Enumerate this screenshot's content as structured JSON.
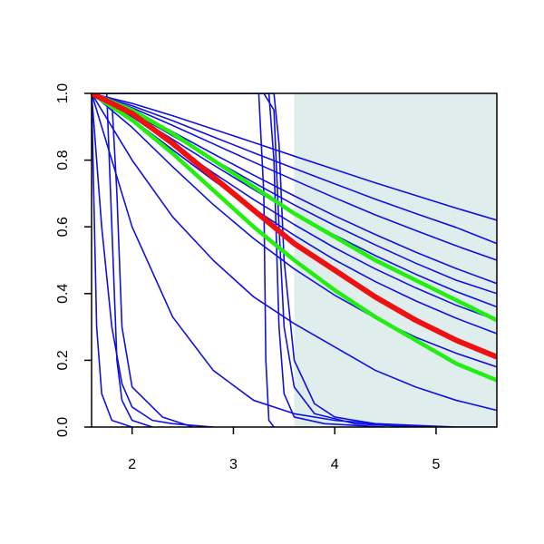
{
  "chart_data": {
    "type": "line",
    "xlim": [
      1.6,
      5.6
    ],
    "ylim": [
      0,
      1
    ],
    "xticks": [
      2,
      3,
      4,
      5
    ],
    "yticks": [
      {
        "value": 0,
        "label": "0.0"
      },
      0.2,
      0.4,
      0.6,
      0.8,
      {
        "value": 1,
        "label": "1.0"
      }
    ],
    "shade": {
      "x": [
        3.6,
        5.6
      ],
      "color": "#e0eded"
    },
    "series": [
      {
        "color": "#1010e0",
        "x": [
          1.6,
          2.0,
          2.4,
          2.8,
          3.2,
          3.6,
          4.0,
          4.4,
          4.8,
          5.2,
          5.6
        ],
        "values": [
          1,
          0.97,
          0.933,
          0.893,
          0.853,
          0.812,
          0.772,
          0.732,
          0.694,
          0.656,
          0.62
        ]
      },
      {
        "color": "#1010e0",
        "x": [
          1.6,
          2.0,
          2.4,
          2.8,
          3.2,
          3.6,
          4.0,
          4.4,
          4.8,
          5.2,
          5.6
        ],
        "values": [
          1,
          0.963,
          0.918,
          0.87,
          0.822,
          0.775,
          0.729,
          0.683,
          0.64,
          0.598,
          0.55
        ]
      },
      {
        "color": "#1010e0",
        "x": [
          1.6,
          2.0,
          2.4,
          2.8,
          3.2,
          3.6,
          4.0,
          4.4,
          4.8,
          5.2,
          5.6
        ],
        "values": [
          1,
          0.957,
          0.904,
          0.849,
          0.794,
          0.74,
          0.687,
          0.636,
          0.589,
          0.543,
          0.5
        ]
      },
      {
        "color": "#1010e0",
        "x": [
          1.6,
          2.0,
          2.4,
          2.8,
          3.2,
          3.6,
          4.0,
          4.4,
          4.8,
          5.2,
          5.6
        ],
        "values": [
          1,
          0.948,
          0.885,
          0.819,
          0.755,
          0.693,
          0.633,
          0.577,
          0.524,
          0.475,
          0.43
        ]
      },
      {
        "color": "#1010e0",
        "x": [
          1.6,
          2.0,
          2.4,
          2.8,
          3.2,
          3.6,
          4.0,
          4.4,
          4.8,
          5.2,
          5.6
        ],
        "values": [
          1,
          0.943,
          0.873,
          0.802,
          0.733,
          0.666,
          0.604,
          0.546,
          0.491,
          0.44,
          0.4
        ]
      },
      {
        "color": "#1010e0",
        "x": [
          1.6,
          2.0,
          2.4,
          2.8,
          3.2,
          3.6,
          4.0,
          4.4,
          4.8,
          5.2,
          5.6
        ],
        "values": [
          1,
          0.938,
          0.862,
          0.786,
          0.712,
          0.641,
          0.575,
          0.514,
          0.458,
          0.406,
          0.36
        ]
      },
      {
        "color": "#1010e0",
        "x": [
          1.6,
          2.0,
          2.4,
          2.8,
          3.2,
          3.6,
          4.0,
          4.4,
          4.8,
          5.2,
          5.6
        ],
        "values": [
          1,
          0.93,
          0.846,
          0.762,
          0.682,
          0.607,
          0.537,
          0.474,
          0.417,
          0.365,
          0.32
        ]
      },
      {
        "color": "#1010e0",
        "x": [
          1.6,
          2.0,
          2.4,
          2.8,
          3.2,
          3.6,
          4.0,
          4.4,
          4.8,
          5.2,
          5.6
        ],
        "values": [
          1,
          0.923,
          0.831,
          0.74,
          0.654,
          0.575,
          0.501,
          0.436,
          0.378,
          0.326,
          0.28
        ]
      },
      {
        "color": "#1010e0",
        "x": [
          1.6,
          2.0,
          2.4,
          2.8,
          3.2,
          3.6,
          4.0,
          4.4,
          4.8,
          5.2,
          5.6
        ],
        "values": [
          1,
          0.898,
          0.78,
          0.667,
          0.565,
          0.474,
          0.395,
          0.327,
          0.269,
          0.221,
          0.18
        ]
      },
      {
        "color": "#1010e0",
        "x": [
          1.6,
          2.0,
          2.4,
          2.8,
          3.2,
          3.6,
          4.0,
          4.4,
          4.8,
          5.2,
          5.6
        ],
        "values": [
          1,
          0.8,
          0.63,
          0.5,
          0.39,
          0.31,
          0.24,
          0.17,
          0.12,
          0.08,
          0.05
        ]
      },
      {
        "color": "#1010e0",
        "x": [
          1.6,
          2.0,
          2.4,
          2.8,
          3.2,
          3.6,
          4.0,
          4.4,
          4.8,
          5.2,
          5.6
        ],
        "values": [
          1,
          0.6,
          0.33,
          0.17,
          0.08,
          0.04,
          0.02,
          0.01,
          0.005,
          0,
          0
        ]
      },
      {
        "color": "#1010e0",
        "x": [
          1.6,
          1.7,
          1.8,
          1.9,
          2.0,
          2.2,
          2.4,
          2.8
        ],
        "values": [
          1,
          0.6,
          0.3,
          0.13,
          0.06,
          0.02,
          0.01,
          0
        ]
      },
      {
        "color": "#1010e0",
        "x": [
          1.6,
          1.65,
          1.7,
          1.8,
          2.0
        ],
        "values": [
          1,
          0.3,
          0.1,
          0.02,
          0
        ]
      },
      {
        "color": "#1010e0",
        "x": [
          1.6,
          1.75,
          1.8,
          1.85,
          1.9,
          2.0,
          2.2
        ],
        "values": [
          1,
          1,
          0.6,
          0.2,
          0.08,
          0.02,
          0
        ]
      },
      {
        "color": "#1010e0",
        "x": [
          1.6,
          1.8,
          1.85,
          1.9,
          2.0,
          2.3,
          2.6
        ],
        "values": [
          1,
          0.98,
          0.7,
          0.3,
          0.12,
          0.03,
          0
        ]
      },
      {
        "color": "#1010e0",
        "x": [
          1.6,
          3.25,
          3.3,
          3.32,
          3.35,
          3.4
        ],
        "values": [
          1,
          1,
          0.7,
          0.2,
          0.02,
          0
        ]
      },
      {
        "color": "#1010e0",
        "x": [
          1.6,
          3.3,
          3.4,
          3.45,
          3.5,
          3.6,
          3.8,
          4.2,
          4.8
        ],
        "values": [
          1,
          1,
          0.95,
          0.6,
          0.3,
          0.12,
          0.04,
          0.01,
          0
        ]
      },
      {
        "color": "#1010e0",
        "x": [
          1.6,
          3.4,
          3.45,
          3.5,
          3.6,
          3.8,
          4.0,
          4.4,
          5.0
        ],
        "values": [
          1,
          1,
          0.85,
          0.5,
          0.2,
          0.07,
          0.03,
          0.01,
          0
        ]
      },
      {
        "color": "#1010e0",
        "x": [
          1.6,
          3.35,
          3.4,
          3.45,
          3.5,
          3.6,
          3.9,
          4.5
        ],
        "values": [
          1,
          1,
          0.8,
          0.3,
          0.1,
          0.03,
          0.01,
          0
        ]
      },
      {
        "color": "#22ee11",
        "x": [
          1.6,
          2.0,
          2.4,
          2.8,
          3.2,
          3.6,
          4.0,
          4.4,
          4.8,
          5.2,
          5.6
        ],
        "values": [
          1,
          0.95,
          0.88,
          0.8,
          0.72,
          0.64,
          0.57,
          0.5,
          0.44,
          0.38,
          0.32
        ]
      },
      {
        "color": "#22ee11",
        "x": [
          1.6,
          2.0,
          2.4,
          2.8,
          3.2,
          3.6,
          4.0,
          4.4,
          4.8,
          5.2,
          5.6
        ],
        "values": [
          1,
          0.92,
          0.82,
          0.71,
          0.6,
          0.5,
          0.41,
          0.33,
          0.26,
          0.19,
          0.14
        ]
      },
      {
        "color": "#ee1111",
        "x": [
          1.6,
          2.0,
          2.4,
          2.8,
          3.2,
          3.6,
          4.0,
          4.4,
          4.8,
          5.2,
          5.6
        ],
        "values": [
          1,
          0.94,
          0.85,
          0.75,
          0.65,
          0.55,
          0.47,
          0.39,
          0.32,
          0.26,
          0.21
        ]
      }
    ]
  }
}
